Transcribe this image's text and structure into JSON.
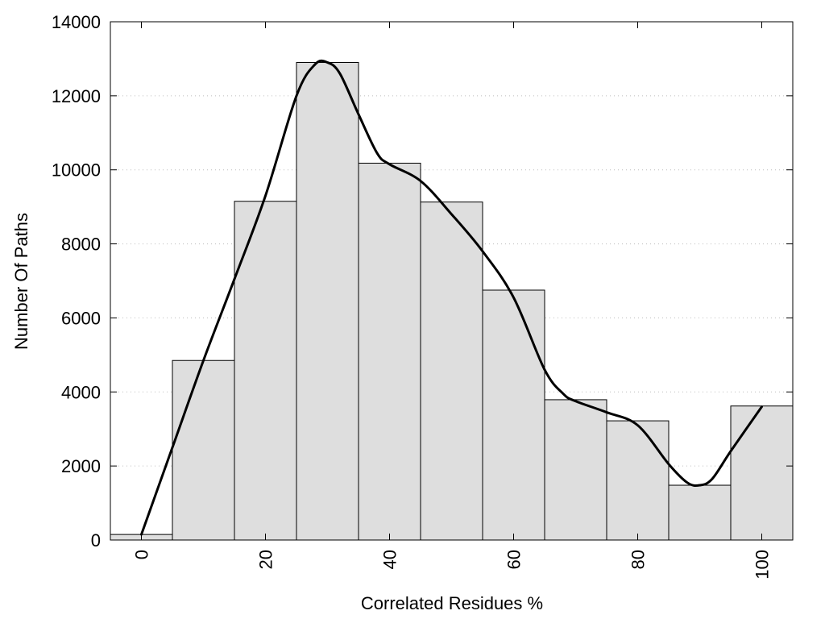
{
  "chart_data": {
    "type": "bar",
    "title": "",
    "xlabel": "Correlated Residues %",
    "ylabel": "Number Of Paths",
    "xlim": [
      -10,
      100
    ],
    "ylim": [
      0,
      14000
    ],
    "bin_width": 10,
    "grid": true,
    "x_ticks": [
      0,
      20,
      40,
      60,
      80,
      100
    ],
    "y_ticks": [
      0,
      2000,
      4000,
      6000,
      8000,
      10000,
      12000,
      14000
    ],
    "bars": [
      {
        "x": 0,
        "value": 150
      },
      {
        "x": 10,
        "value": 4850
      },
      {
        "x": 20,
        "value": 9150
      },
      {
        "x": 30,
        "value": 12900
      },
      {
        "x": 40,
        "value": 10180
      },
      {
        "x": 50,
        "value": 9130
      },
      {
        "x": 60,
        "value": 6750
      },
      {
        "x": 70,
        "value": 3790
      },
      {
        "x": 80,
        "value": 3220
      },
      {
        "x": 90,
        "value": 1480
      },
      {
        "x": 100,
        "value": 3620
      }
    ],
    "curve": {
      "type": "smooth-line",
      "x": [
        0,
        5,
        10,
        15,
        20,
        25,
        28,
        30,
        32,
        35,
        38,
        40,
        45,
        50,
        55,
        60,
        65,
        68,
        70,
        75,
        80,
        85,
        88,
        90,
        92,
        95,
        100
      ],
      "y": [
        150,
        2500,
        4850,
        7050,
        9300,
        12000,
        12850,
        12900,
        12600,
        11500,
        10450,
        10150,
        9700,
        8800,
        7800,
        6550,
        4600,
        3950,
        3750,
        3450,
        3100,
        2050,
        1550,
        1480,
        1650,
        2400,
        3600
      ]
    }
  }
}
